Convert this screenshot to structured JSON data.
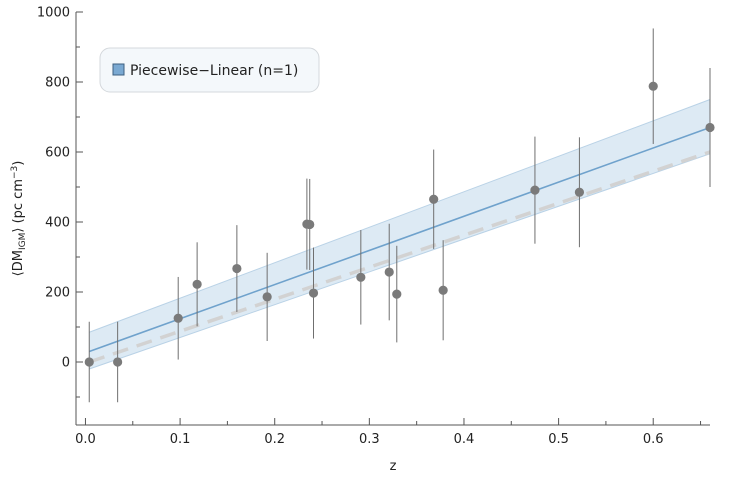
{
  "chart_data": {
    "type": "scatter",
    "title": "",
    "xlabel": "z",
    "ylabel": {
      "prefix": "⟨DM",
      "subscript": "IGM",
      "middle": "⟩ (pc cm",
      "superscript": "−3",
      "suffix": ")"
    },
    "xlim": [
      -0.01,
      0.66
    ],
    "ylim": [
      -180,
      1000
    ],
    "x_ticks": [
      0.0,
      0.1,
      0.2,
      0.3,
      0.4,
      0.5,
      0.6
    ],
    "x_tick_labels": [
      "0.0",
      "0.1",
      "0.2",
      "0.3",
      "0.4",
      "0.5",
      "0.6"
    ],
    "y_ticks": [
      0,
      200,
      400,
      600,
      800,
      1000
    ],
    "y_tick_labels": [
      "0",
      "200",
      "400",
      "600",
      "800",
      "1000"
    ],
    "grid": false,
    "legend": {
      "position": "top-left",
      "entries": [
        "Piecewise−Linear (n=1)"
      ]
    },
    "colors": {
      "points": "#7a7a7a",
      "errorbars": "#6f6f6f",
      "fit_line": "#6fa2cc",
      "band_fill": "#ddeaf4",
      "band_edge": "#b9d2e6",
      "dashed": "#d2d2d2",
      "legend_swatch": "#7aa9d2"
    },
    "points": [
      {
        "x": 0.004,
        "y": 0,
        "err": 115
      },
      {
        "x": 0.034,
        "y": 0,
        "err": 115
      },
      {
        "x": 0.098,
        "y": 125,
        "err": 118
      },
      {
        "x": 0.118,
        "y": 222,
        "err": 120
      },
      {
        "x": 0.16,
        "y": 267,
        "err": 124
      },
      {
        "x": 0.192,
        "y": 186,
        "err": 126
      },
      {
        "x": 0.234,
        "y": 394,
        "err": 130
      },
      {
        "x": 0.237,
        "y": 393,
        "err": 130
      },
      {
        "x": 0.241,
        "y": 197,
        "err": 130
      },
      {
        "x": 0.291,
        "y": 242,
        "err": 135
      },
      {
        "x": 0.321,
        "y": 257,
        "err": 138
      },
      {
        "x": 0.329,
        "y": 194,
        "err": 138
      },
      {
        "x": 0.368,
        "y": 465,
        "err": 142
      },
      {
        "x": 0.378,
        "y": 205,
        "err": 143
      },
      {
        "x": 0.475,
        "y": 491,
        "err": 153
      },
      {
        "x": 0.522,
        "y": 485,
        "err": 157
      },
      {
        "x": 0.6,
        "y": 788,
        "err": 165
      },
      {
        "x": 0.66,
        "y": 670,
        "err": 170
      }
    ],
    "fit": {
      "name": "Piecewise−Linear (n=1)",
      "x": [
        0.004,
        0.66
      ],
      "y": [
        30,
        670
      ],
      "band_lower": [
        -20,
        595
      ],
      "band_upper": [
        85,
        750
      ]
    },
    "reference_dashed": {
      "x": [
        0.004,
        0.66
      ],
      "y": [
        0,
        600
      ]
    }
  }
}
